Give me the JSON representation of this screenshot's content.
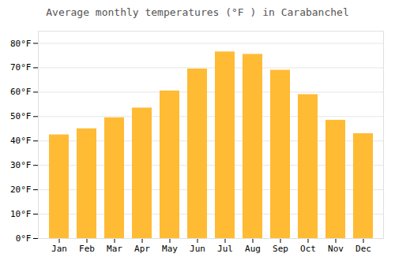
{
  "chart_data": {
    "type": "bar",
    "title": "Average monthly temperatures (°F ) in Carabanchel",
    "categories": [
      "Jan",
      "Feb",
      "Mar",
      "Apr",
      "May",
      "Jun",
      "Jul",
      "Aug",
      "Sep",
      "Oct",
      "Nov",
      "Dec"
    ],
    "values": [
      42.5,
      45.0,
      49.5,
      53.5,
      60.5,
      69.5,
      76.5,
      75.5,
      69.0,
      59.0,
      48.5,
      43.0
    ],
    "color": "#FFBB33",
    "ylim": [
      0,
      85
    ],
    "yticks": [
      {
        "value": 0,
        "label": "0°F"
      },
      {
        "value": 10,
        "label": "10°F"
      },
      {
        "value": 20,
        "label": "20°F"
      },
      {
        "value": 30,
        "label": "30°F"
      },
      {
        "value": 40,
        "label": "40°F"
      },
      {
        "value": 50,
        "label": "50°F"
      },
      {
        "value": 60,
        "label": "60°F"
      },
      {
        "value": 70,
        "label": "70°F"
      },
      {
        "value": 80,
        "label": "80°F"
      }
    ],
    "grid": true
  }
}
